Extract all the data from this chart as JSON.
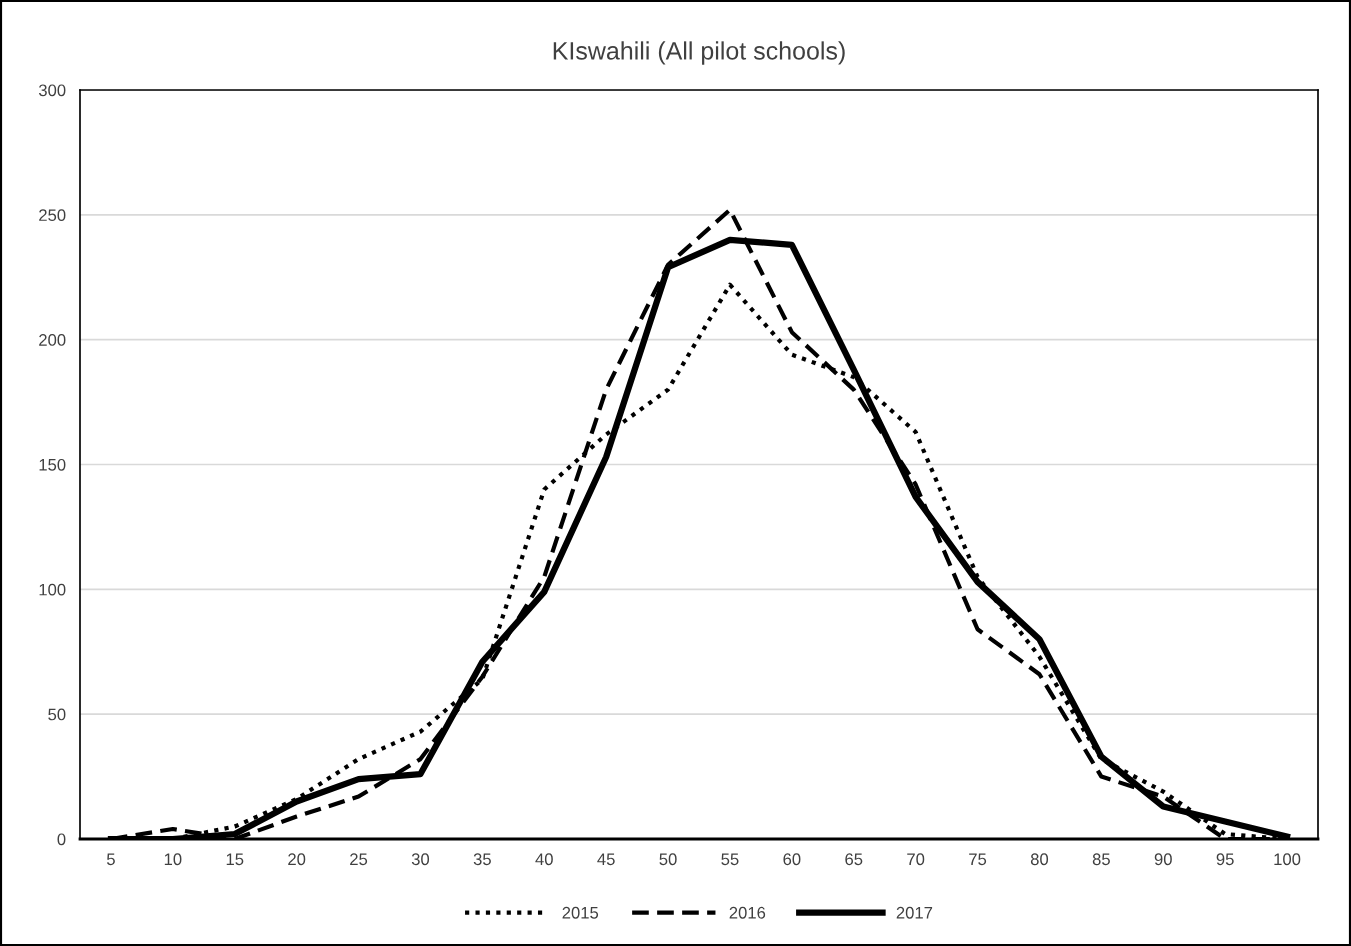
{
  "chart_data": {
    "type": "line",
    "title": "KIswahili (All pilot schools)",
    "categories": [
      "5",
      "10",
      "15",
      "20",
      "25",
      "30",
      "35",
      "40",
      "45",
      "50",
      "55",
      "60",
      "65",
      "70",
      "75",
      "80",
      "85",
      "90",
      "95",
      "100"
    ],
    "series": [
      {
        "name": "2015",
        "color": "#000000",
        "line_style": "dotted",
        "values": [
          0,
          0,
          5,
          16,
          32,
          43,
          64,
          140,
          162,
          180,
          222,
          194,
          185,
          163,
          105,
          73,
          32,
          19,
          2,
          0
        ]
      },
      {
        "name": "2016",
        "color": "#000000",
        "line_style": "dashed",
        "values": [
          0,
          4,
          0,
          9,
          17,
          32,
          65,
          105,
          180,
          230,
          252,
          203,
          180,
          142,
          84,
          66,
          25,
          17,
          0,
          0
        ]
      },
      {
        "name": "2017",
        "color": "#000000",
        "line_style": "solid",
        "values": [
          0,
          0,
          2,
          15,
          24,
          26,
          71,
          99,
          153,
          229,
          240,
          238,
          188,
          137,
          103,
          80,
          33,
          13,
          7,
          1
        ]
      }
    ],
    "ylim": [
      0,
      300
    ],
    "yticks": [
      0,
      50,
      100,
      150,
      200,
      250,
      300
    ],
    "grid": "y",
    "legend": "bottom",
    "marker": "none"
  }
}
